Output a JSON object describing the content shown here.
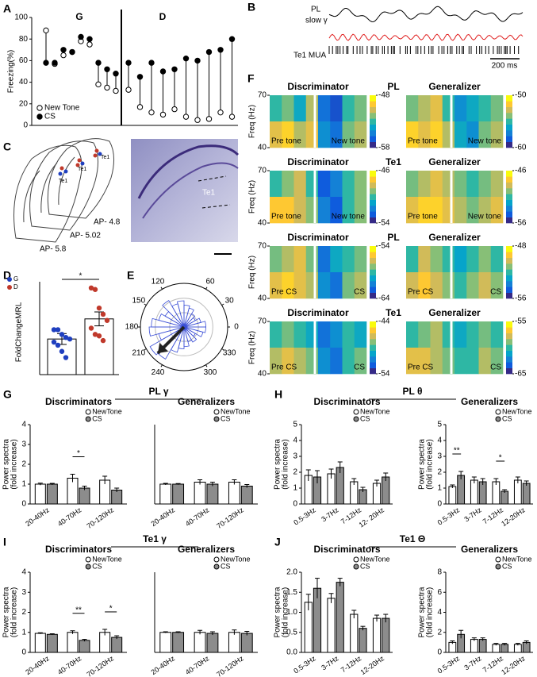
{
  "panel_labels": [
    "A",
    "B",
    "C",
    "D",
    "E",
    "F",
    "G",
    "H",
    "I",
    "J"
  ],
  "panel_b": {
    "title_lines": [
      "PL",
      "slow γ"
    ],
    "mua_label": "Te1 MUA",
    "scale_bar": "200 ms"
  },
  "panel_c": {
    "labels": [
      "Te1",
      "Te1",
      "Te1"
    ],
    "ap": [
      "AP- 4.8",
      "AP- 5.02",
      "AP- 5.8"
    ],
    "histology_label": "Te1"
  },
  "group_titles": [
    "PL γ",
    "PL θ",
    "Te1 γ",
    "Te1 Θ"
  ],
  "heatmap_row_labels": [
    "PL",
    "Te1",
    "PL",
    "Te1"
  ],
  "colormap": [
    "#352a87",
    "#0f5cdd",
    "#1481d6",
    "#06a4ca",
    "#2eb7a4",
    "#87bf77",
    "#d1bb59",
    "#fec832",
    "#f9fb0e"
  ],
  "chart_data": [
    {
      "type": "dumbbell",
      "ylabel": "Freezing(%)",
      "ylim": [
        0,
        100
      ],
      "yticks": [
        0,
        20,
        40,
        60,
        80,
        100
      ],
      "groups": [
        "G",
        "D"
      ],
      "series": [
        {
          "name": "New Tone",
          "color": "#ffffff",
          "values": [
            [
              88,
              57,
              65,
              68,
              78,
              75,
              38,
              35,
              32
            ],
            [
              33,
              17,
              12,
              10,
              15,
              8,
              5,
              6,
              12,
              8
            ]
          ]
        },
        {
          "name": "CS",
          "color": "#000000",
          "values": [
            [
              58,
              58,
              70,
              68,
              82,
              80,
              58,
              52,
              48
            ],
            [
              58,
              45,
              58,
              50,
              52,
              62,
              60,
              68,
              70,
              80
            ]
          ]
        }
      ]
    },
    {
      "type": "bar_scatter",
      "ylabel": "FoldChangeMRL",
      "ylim": [
        0,
        6
      ],
      "series": [
        {
          "name": "G",
          "color": "#1f3fbf",
          "value": 2.3,
          "error": 0.35,
          "points": [
            2.9,
            2.9,
            2.6,
            2.4,
            2.3,
            2.1,
            1.9,
            1.5,
            1.1
          ]
        },
        {
          "name": "D",
          "color": "#c0392b",
          "value": 3.6,
          "error": 0.45,
          "points": [
            5.6,
            5.5,
            4.3,
            3.9,
            3.5,
            3.0,
            2.6,
            2.5,
            2.2
          ]
        }
      ],
      "annotations": [
        {
          "text": "*"
        }
      ]
    },
    {
      "type": "polar",
      "angle_ticks": [
        0,
        30,
        60,
        120,
        150,
        180,
        210,
        240,
        300,
        330
      ],
      "rlim": [
        0,
        1
      ],
      "values": [
        0.5,
        0.4,
        0.3,
        0.35,
        0.45,
        0.5,
        0.6,
        0.55,
        0.7,
        0.5,
        0.6,
        0.75,
        0.8,
        0.6,
        0.9,
        0.85,
        0.6,
        0.5,
        0.45,
        0.35,
        0.4,
        0.3,
        0.45,
        0.5
      ],
      "arrow": {
        "angle": 225,
        "length": 0.85
      }
    },
    {
      "type": "heatmap",
      "title": "Discriminator",
      "ylabel": "Freq (Hz)",
      "ylim": [
        40,
        70
      ],
      "yticks": [
        40,
        70
      ],
      "clim": [
        -58,
        -48
      ],
      "cticks": [
        -58,
        -48
      ],
      "labels": [
        "Pre tone",
        "New tone"
      ],
      "values": [
        [
          -53,
          -52,
          -54,
          -51,
          -56,
          -57,
          -53,
          -52
        ],
        [
          -50,
          -49,
          -51,
          -50,
          -55,
          -56,
          -52,
          -51
        ]
      ]
    },
    {
      "type": "heatmap",
      "title": "Generalizer",
      "clim": [
        -60,
        -50
      ],
      "cticks": [
        -60,
        -50
      ],
      "labels": [
        "Pre tone",
        "New tone"
      ],
      "values": [
        [
          -54,
          -53,
          -52,
          -55,
          -57,
          -56,
          -55,
          -54
        ],
        [
          -51,
          -52,
          -51,
          -53,
          -56,
          -57,
          -54,
          -53
        ]
      ]
    },
    {
      "type": "heatmap",
      "title": "Discriminator",
      "ylabel": "Freq (Hz)",
      "ylim": [
        40,
        70
      ],
      "yticks": [
        40,
        70
      ],
      "clim": [
        -54,
        -46
      ],
      "cticks": [
        -54,
        -46
      ],
      "labels": [
        "Pre tone",
        "New tone"
      ],
      "values": [
        [
          -50,
          -49,
          -48,
          -50,
          -53,
          -52,
          -50,
          -49
        ],
        [
          -47,
          -47,
          -48,
          -49,
          -52,
          -53,
          -50,
          -49
        ]
      ]
    },
    {
      "type": "heatmap",
      "title": "Generalizer",
      "clim": [
        -56,
        -46
      ],
      "cticks": [
        -56,
        -46
      ],
      "labels": [
        "Pre tone",
        "New tone"
      ],
      "values": [
        [
          -50,
          -49,
          -48,
          -49,
          -50,
          -51,
          -50,
          -49
        ],
        [
          -48,
          -47,
          -47,
          -48,
          -49,
          -50,
          -49,
          -48
        ]
      ]
    },
    {
      "type": "heatmap",
      "title": "Discriminator",
      "ylabel": "Freq (Hz)",
      "ylim": [
        40,
        70
      ],
      "yticks": [
        40,
        70
      ],
      "clim": [
        -64,
        -54
      ],
      "cticks": [
        -64,
        -54
      ],
      "labels": [
        "Pre CS",
        "CS"
      ],
      "values": [
        [
          -58,
          -57,
          -56,
          -58,
          -62,
          -60,
          -59,
          -58
        ],
        [
          -56,
          -55,
          -56,
          -57,
          -61,
          -62,
          -58,
          -57
        ]
      ]
    },
    {
      "type": "heatmap",
      "title": "Generalizer",
      "clim": [
        -56,
        -48
      ],
      "cticks": [
        -56,
        -48
      ],
      "labels": [
        "Pre CS",
        "CS"
      ],
      "values": [
        [
          -52,
          -50,
          -51,
          -52,
          -53,
          -52,
          -51,
          -52
        ],
        [
          -50,
          -49,
          -50,
          -51,
          -52,
          -51,
          -50,
          -51
        ]
      ]
    },
    {
      "type": "heatmap",
      "title": "Discriminator",
      "ylabel": "Freq (Hz)",
      "ylim": [
        40,
        70
      ],
      "yticks": [
        40,
        70
      ],
      "clim": [
        -54,
        -44
      ],
      "cticks": [
        -54,
        -44
      ],
      "labels": [
        "Pre CS",
        "CS"
      ],
      "values": [
        [
          -49,
          -48,
          -49,
          -50,
          -52,
          -51,
          -49,
          -50
        ],
        [
          -47,
          -46,
          -47,
          -48,
          -51,
          -52,
          -49,
          -48
        ]
      ]
    },
    {
      "type": "heatmap",
      "title": "Generalizer",
      "clim": [
        -65,
        -55
      ],
      "cticks": [
        -65,
        -55
      ],
      "labels": [
        "Pre CS",
        "CS"
      ],
      "values": [
        [
          -60,
          -59,
          -58,
          -60,
          -61,
          -60,
          -59,
          -60
        ],
        [
          -57,
          -57,
          -58,
          -59,
          -60,
          -60,
          -58,
          -59
        ]
      ]
    },
    {
      "type": "bar",
      "title": "Discriminators",
      "ylabel": [
        "Power spectra",
        "(fold increase)"
      ],
      "categories": [
        "20-40Hz",
        "40-70Hz",
        "70-120Hz"
      ],
      "ylim": [
        0,
        4
      ],
      "yticks": [
        0,
        1,
        2,
        3,
        4
      ],
      "series": [
        {
          "name": "NewTone",
          "color": "#ffffff",
          "values": [
            1.0,
            1.3,
            1.2
          ],
          "errors": [
            0.05,
            0.2,
            0.2
          ]
        },
        {
          "name": "CS",
          "color": "#8c8c8c",
          "values": [
            1.0,
            0.8,
            0.7
          ],
          "errors": [
            0.04,
            0.1,
            0.1
          ]
        }
      ],
      "annotations": [
        {
          "text": "*",
          "category": 1
        }
      ]
    },
    {
      "type": "bar",
      "title": "Generalizers",
      "categories": [
        "20-40Hz",
        "40-70Hz",
        "70-120Hz"
      ],
      "ylim": [
        0,
        4
      ],
      "series": [
        {
          "name": "NewTone",
          "color": "#ffffff",
          "values": [
            1.0,
            1.1,
            1.1
          ],
          "errors": [
            0.04,
            0.12,
            0.12
          ]
        },
        {
          "name": "CS",
          "color": "#8c8c8c",
          "values": [
            1.0,
            1.0,
            0.9
          ],
          "errors": [
            0.03,
            0.1,
            0.08
          ]
        }
      ]
    },
    {
      "type": "bar",
      "title": "Discriminators",
      "ylabel": [
        "Power spectra",
        "(fold increase)"
      ],
      "categories": [
        "0.5-3Hz",
        "3-7Hz",
        "7-12Hz",
        "12- 20Hz"
      ],
      "ylim": [
        0,
        5
      ],
      "yticks": [
        0,
        1,
        2,
        3,
        4,
        5
      ],
      "series": [
        {
          "name": "NewTone",
          "color": "#ffffff",
          "values": [
            1.8,
            1.9,
            1.4,
            1.3
          ],
          "errors": [
            0.35,
            0.3,
            0.2,
            0.2
          ]
        },
        {
          "name": "CS",
          "color": "#8c8c8c",
          "values": [
            1.7,
            2.3,
            0.9,
            1.7
          ],
          "errors": [
            0.4,
            0.35,
            0.15,
            0.25
          ]
        }
      ]
    },
    {
      "type": "bar",
      "title": "Generalizers",
      "ylabel": [
        "Power spectra",
        "(fold increase)"
      ],
      "categories": [
        "0.5-3Hz",
        "3-7Hz",
        "7-12Hz",
        "12-20Hz"
      ],
      "ylim": [
        0,
        5
      ],
      "yticks": [
        0,
        1,
        2,
        3,
        4,
        5
      ],
      "series": [
        {
          "name": "NewTone",
          "color": "#ffffff",
          "values": [
            1.1,
            1.5,
            1.4,
            1.5
          ],
          "errors": [
            0.1,
            0.2,
            0.2,
            0.2
          ]
        },
        {
          "name": "CS",
          "color": "#8c8c8c",
          "values": [
            1.8,
            1.4,
            0.8,
            1.3
          ],
          "errors": [
            0.25,
            0.2,
            0.1,
            0.15
          ]
        }
      ],
      "annotations": [
        {
          "text": "**",
          "category": 0
        },
        {
          "text": "*",
          "category": 2
        }
      ]
    },
    {
      "type": "bar",
      "title": "Discriminators",
      "ylabel": [
        "Power spectra",
        "(fold increase)"
      ],
      "categories": [
        "20-40Hz",
        "40-70Hz",
        "70-120Hz"
      ],
      "ylim": [
        0,
        4
      ],
      "yticks": [
        0,
        1,
        2,
        3,
        4
      ],
      "series": [
        {
          "name": "NewTone",
          "color": "#ffffff",
          "values": [
            0.95,
            1.0,
            1.0
          ],
          "errors": [
            0.03,
            0.08,
            0.15
          ]
        },
        {
          "name": "CS",
          "color": "#8c8c8c",
          "values": [
            0.9,
            0.6,
            0.75
          ],
          "errors": [
            0.03,
            0.05,
            0.08
          ]
        }
      ],
      "annotations": [
        {
          "text": "**",
          "category": 1
        },
        {
          "text": "*",
          "category": 2
        }
      ]
    },
    {
      "type": "bar",
      "title": "Generalizers",
      "categories": [
        "20-40Hz",
        "40-70Hz",
        "70-120Hz"
      ],
      "ylim": [
        0,
        4
      ],
      "series": [
        {
          "name": "NewTone",
          "color": "#ffffff",
          "values": [
            1.0,
            1.0,
            1.0
          ],
          "errors": [
            0.03,
            0.1,
            0.12
          ]
        },
        {
          "name": "CS",
          "color": "#8c8c8c",
          "values": [
            1.0,
            0.95,
            0.95
          ],
          "errors": [
            0.03,
            0.08,
            0.1
          ]
        }
      ]
    },
    {
      "type": "bar",
      "title": "Discriminators",
      "ylabel": [
        "Power spectra",
        "(fold increase)"
      ],
      "categories": [
        "0.5-3Hz",
        "3-7Hz",
        "7-12Hz",
        "12-20Hz"
      ],
      "ylim": [
        0,
        2
      ],
      "yticks": [
        {
          "value": 0,
          "label": "0.0"
        },
        {
          "value": 0.5,
          "label": "0.5"
        },
        {
          "value": 1,
          "label": "1.0"
        },
        {
          "value": 1.5,
          "label": "1.5"
        },
        {
          "value": 2,
          "label": "2.0"
        }
      ],
      "series": [
        {
          "name": "NewTone",
          "color": "#ffffff",
          "values": [
            1.25,
            1.35,
            0.95,
            0.85
          ],
          "errors": [
            0.2,
            0.12,
            0.1,
            0.08
          ]
        },
        {
          "name": "CS",
          "color": "#8c8c8c",
          "values": [
            1.6,
            1.75,
            0.6,
            0.85
          ],
          "errors": [
            0.25,
            0.1,
            0.05,
            0.1
          ]
        }
      ]
    },
    {
      "type": "bar",
      "title": "Generalizers",
      "ylabel": [
        "Power spectra",
        "(fold increase)"
      ],
      "categories": [
        "0.5-3Hz",
        "3-7Hz",
        "7-12Hz",
        "12-20Hz"
      ],
      "ylim": [
        0,
        8
      ],
      "yticks": [
        0,
        2,
        4,
        6,
        8
      ],
      "series": [
        {
          "name": "NewTone",
          "color": "#ffffff",
          "values": [
            1.0,
            1.3,
            0.8,
            0.8
          ],
          "errors": [
            0.15,
            0.15,
            0.1,
            0.1
          ]
        },
        {
          "name": "CS",
          "color": "#8c8c8c",
          "values": [
            1.8,
            1.3,
            0.8,
            1.0
          ],
          "errors": [
            0.4,
            0.15,
            0.1,
            0.15
          ]
        }
      ]
    }
  ]
}
